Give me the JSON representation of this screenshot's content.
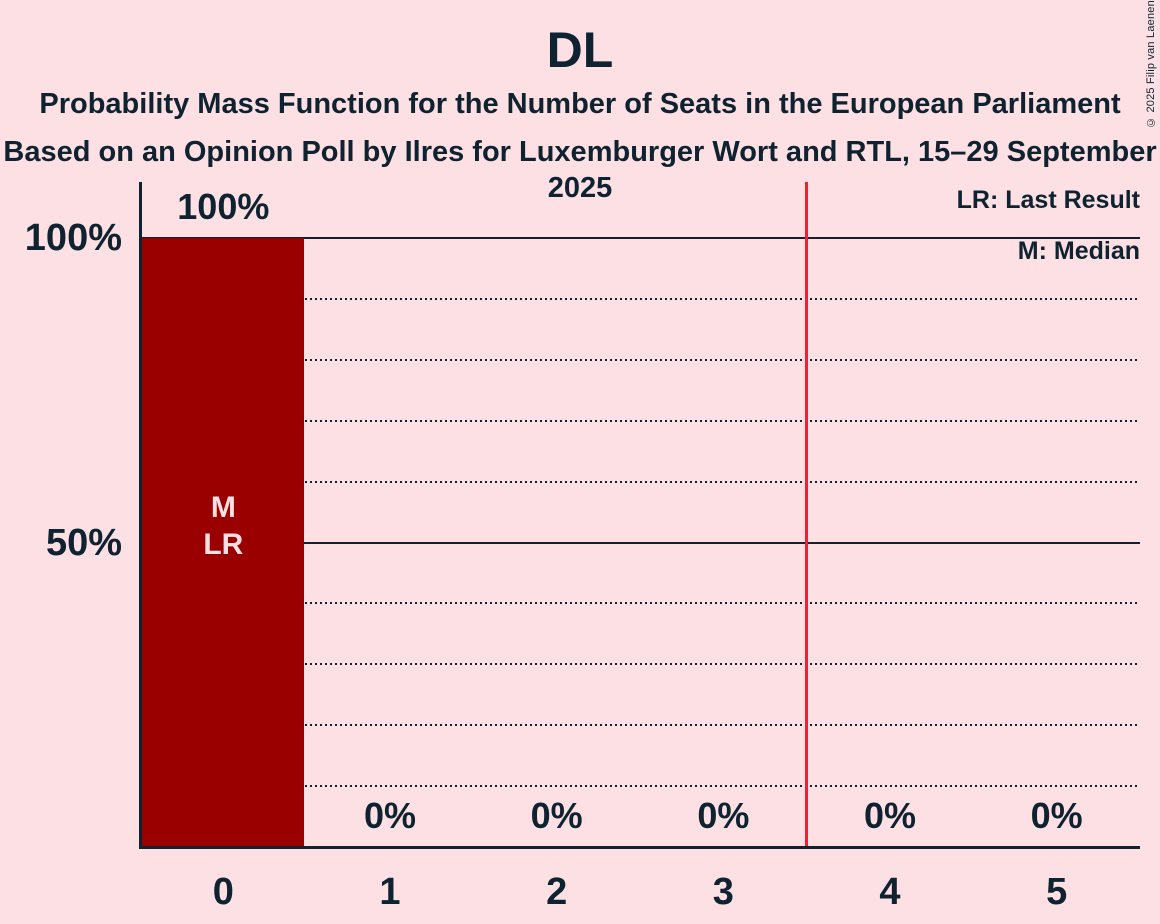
{
  "header": {
    "title": "DL",
    "subtitle": "Probability Mass Function for the Number of Seats in the European Parliament",
    "source": "Based on an Opinion Poll by Ilres for Luxemburger Wort and RTL, 15–29 September 2025"
  },
  "copyright": "© 2025 Filip van Laenen",
  "legend": {
    "lr": "LR: Last Result",
    "m": "M: Median"
  },
  "chart_data": {
    "type": "bar",
    "title": "DL",
    "xlabel": "",
    "ylabel": "",
    "categories": [
      "0",
      "1",
      "2",
      "3",
      "4",
      "5"
    ],
    "values": [
      100,
      0,
      0,
      0,
      0,
      0
    ],
    "value_labels": [
      "100%",
      "0%",
      "0%",
      "0%",
      "0%",
      "0%"
    ],
    "yticks": [
      {
        "label": "100%",
        "value": 100
      },
      {
        "label": "50%",
        "value": 50
      }
    ],
    "ylim": [
      0,
      100
    ],
    "gridlines": {
      "solid": [
        100,
        50
      ],
      "dotted": [
        90,
        80,
        70,
        60,
        40,
        30,
        20,
        10
      ]
    },
    "bar_annotations": [
      {
        "category": "0",
        "lines": [
          "M",
          "LR"
        ]
      }
    ],
    "red_line_x": 3.5,
    "legend_position": "top-right",
    "legend_entries": [
      "LR: Last Result",
      "M: Median"
    ],
    "colors": {
      "background": "#fce0e4",
      "bar": "#9b0000",
      "text": "#0e2230",
      "red_line": "#e7242f",
      "bar_label": "#fce0e4"
    }
  }
}
